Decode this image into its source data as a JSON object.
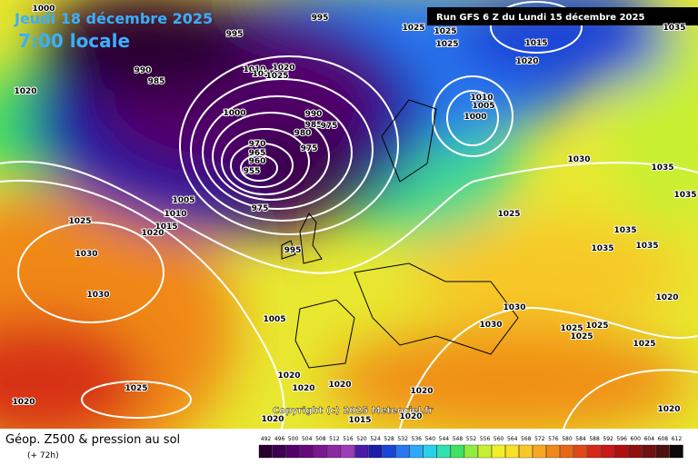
{
  "header": {
    "date": "Jeudi 18 décembre 2025",
    "time": "7:00 locale",
    "run": "Run GFS 6 Z du Lundi 15 décembre 2025"
  },
  "copyright": "Copyright (c) 2025 Meteociel.fr",
  "footer": {
    "title": "Géop. Z500 & pression au sol",
    "lead": "(+ 72h)"
  },
  "legend": {
    "labels": [
      "492",
      "496",
      "500",
      "504",
      "508",
      "512",
      "516",
      "520",
      "524",
      "528",
      "532",
      "536",
      "540",
      "544",
      "548",
      "552",
      "556",
      "560",
      "564",
      "568",
      "572",
      "576",
      "580",
      "584",
      "588",
      "592",
      "596",
      "600",
      "604",
      "608",
      "612"
    ],
    "colors": [
      "#2a0030",
      "#3d0050",
      "#52006a",
      "#66087c",
      "#7a168e",
      "#8c28a2",
      "#9c3cb6",
      "#4a1ca8",
      "#1c1ca8",
      "#1c44d8",
      "#2a78f0",
      "#30a8f8",
      "#28d0e8",
      "#30e0b0",
      "#40e060",
      "#90ec40",
      "#c8f030",
      "#f0f028",
      "#f8e028",
      "#f8c828",
      "#f8a820",
      "#f08818",
      "#e86818",
      "#e04818",
      "#d82818",
      "#c81818",
      "#b01010",
      "#901010",
      "#701010",
      "#501010",
      "#100808"
    ]
  },
  "isobar_labels": [
    "1000",
    "995",
    "995",
    "1025",
    "1025",
    "1025",
    "1015",
    "1020",
    "1035",
    "990",
    "985",
    "1020",
    "1010",
    "1020",
    "1015",
    "1025",
    "1000",
    "990",
    "985",
    "980",
    "975",
    "970",
    "965",
    "960",
    "955",
    "975",
    "1010",
    "1005",
    "1000",
    "1030",
    "1035",
    "1035",
    "1005",
    "1010",
    "1015",
    "1020",
    "975",
    "1025",
    "1025",
    "1035",
    "1035",
    "1035",
    "1030",
    "1030",
    "995",
    "1030",
    "1030",
    "1025",
    "1025",
    "1025",
    "1020",
    "1005",
    "1025",
    "1020",
    "1020",
    "1020",
    "1025",
    "1020",
    "1020",
    "1020",
    "1015",
    "1020",
    "1020"
  ]
}
